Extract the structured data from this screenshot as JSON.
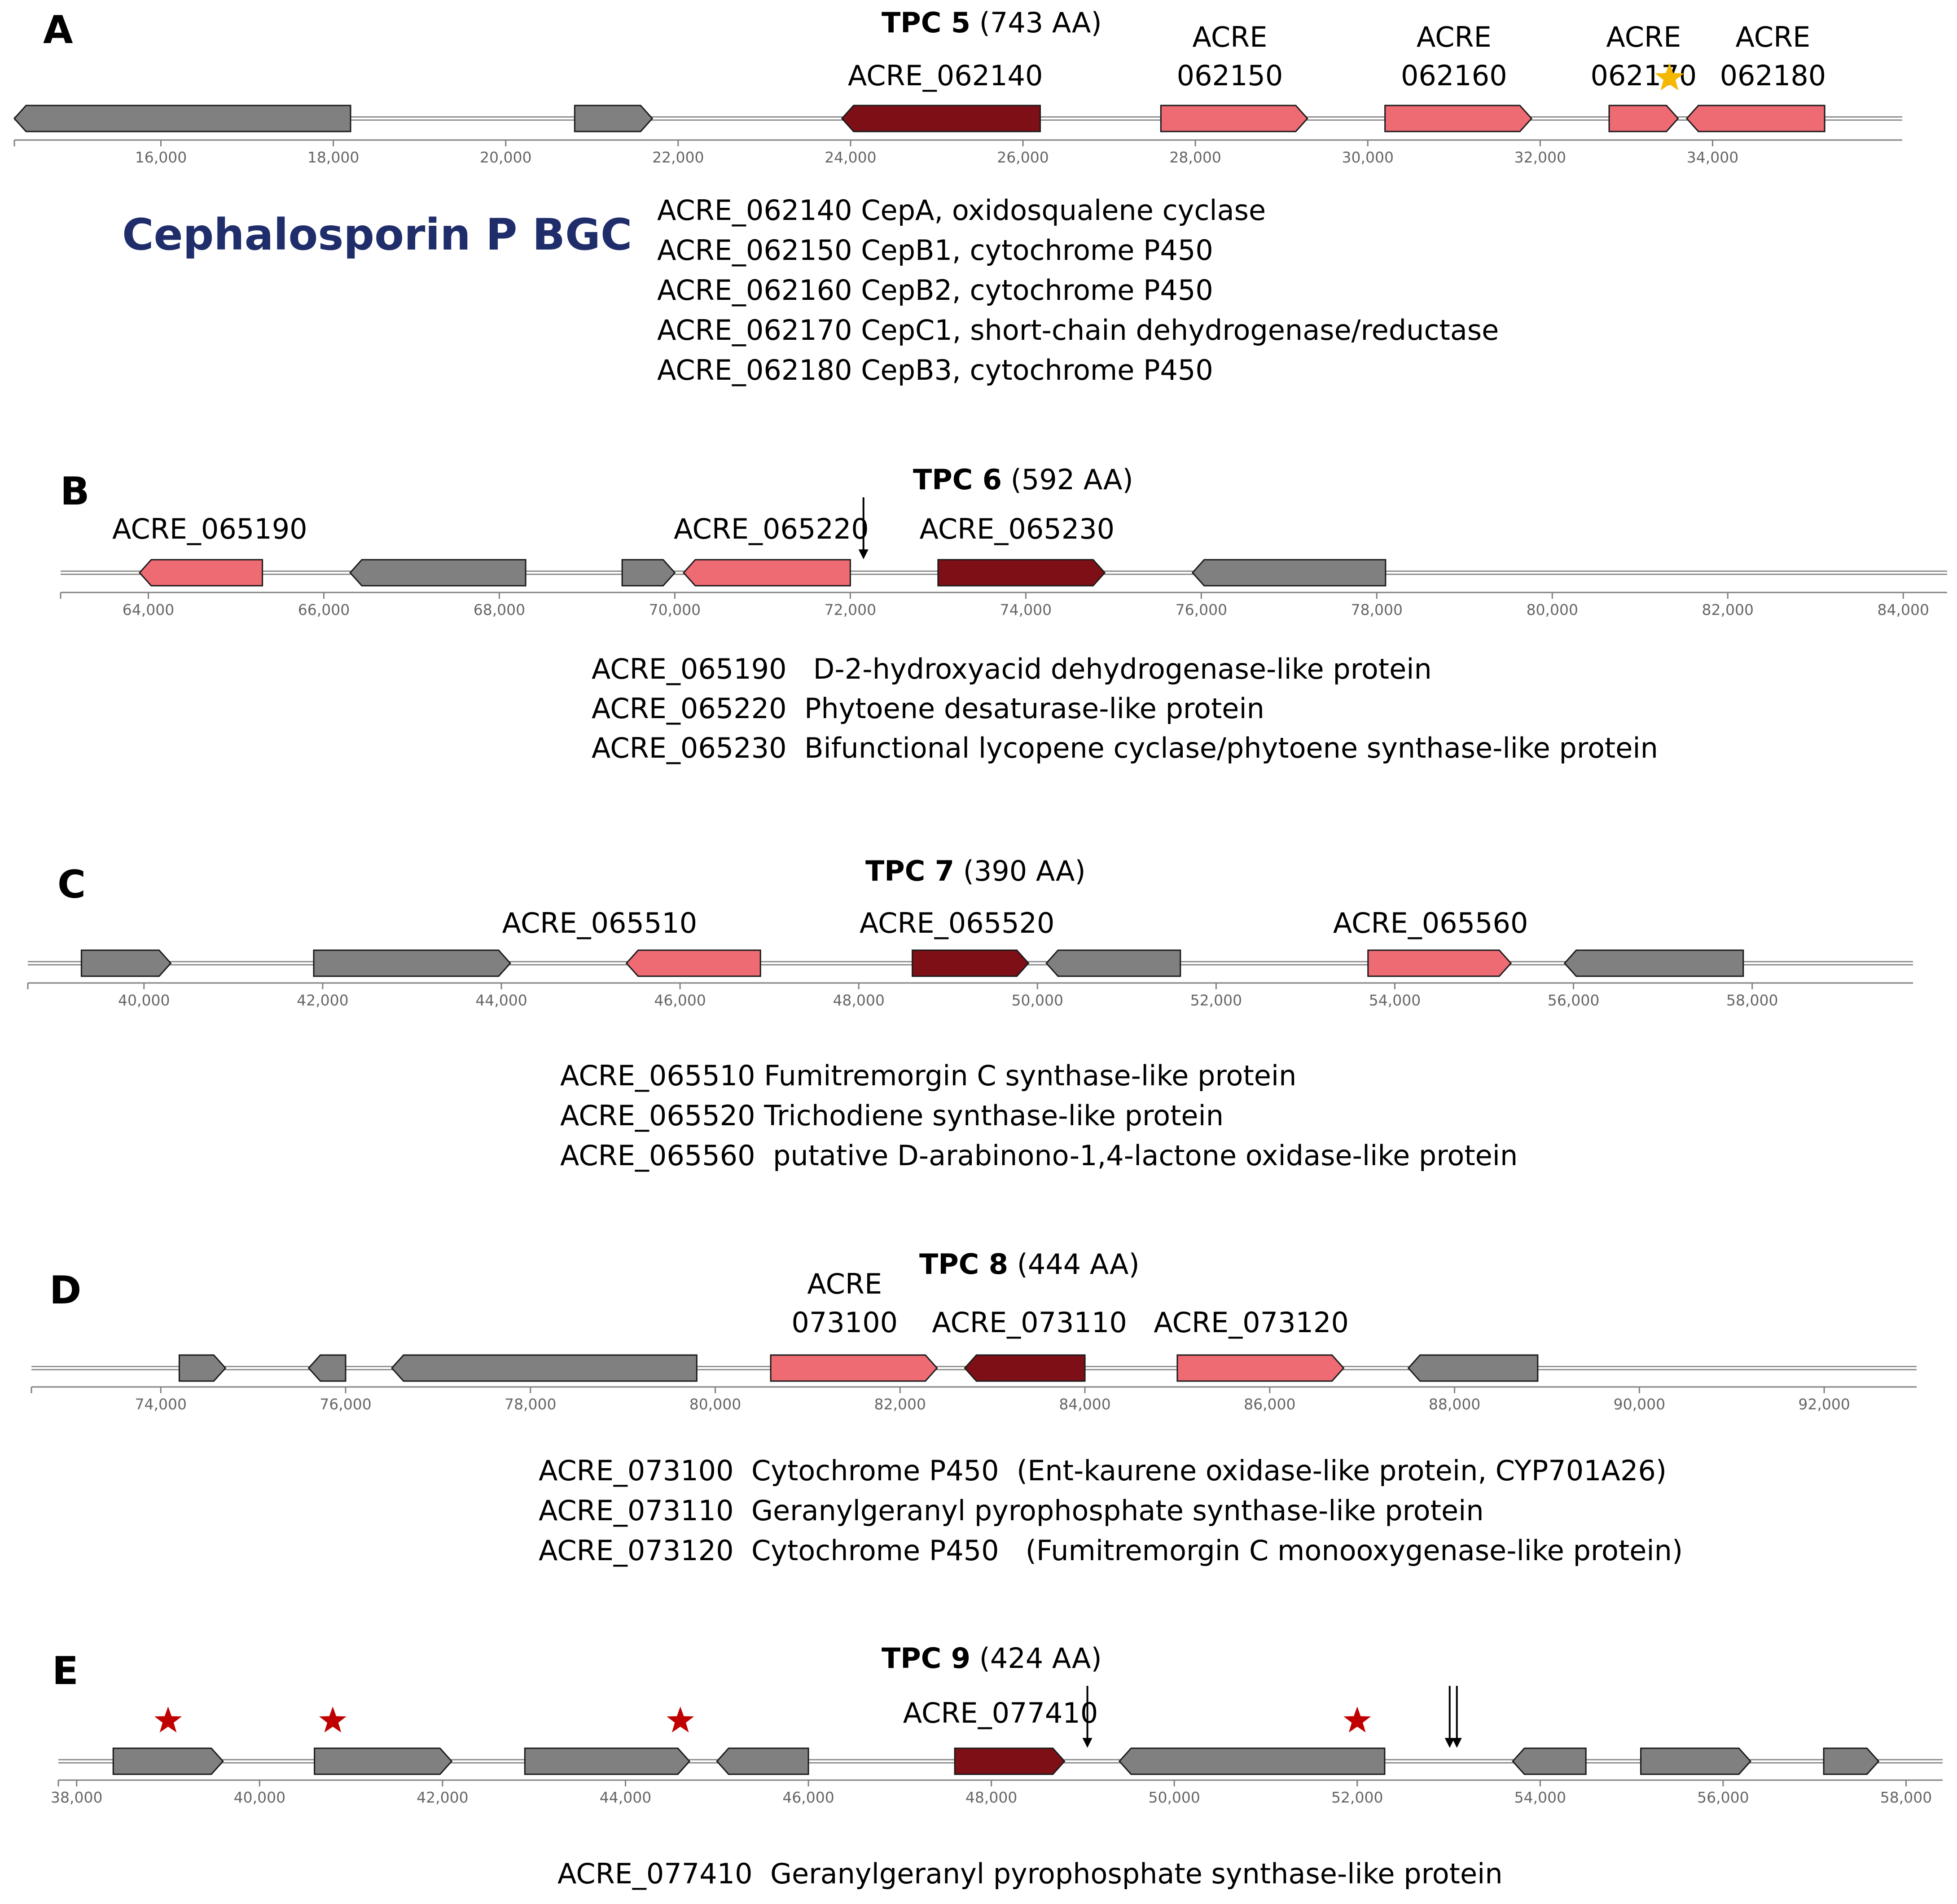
{
  "colors": {
    "core_gene": "#7f0f17",
    "cluster_gene": "#ee6b73",
    "other_gene": "#808080",
    "gene_stroke": "#1a1a1a",
    "backbone": "#909090",
    "axis": "#808080",
    "cluster_title": "#1f2d6b",
    "marker_star_gold": "#f5b800",
    "marker_star_red": "#c00000"
  },
  "cluster_title": "Cephalosporin P BGC",
  "panels": [
    {
      "letter": "A",
      "tpc_name": "TPC 5",
      "tpc_size": "(743 AA)",
      "axis": {
        "min": 14300,
        "max": 36200,
        "ticks": [
          16000,
          18000,
          20000,
          22000,
          24000,
          26000,
          28000,
          30000,
          32000,
          34000
        ]
      },
      "genes": [
        {
          "start": 14300,
          "end": 18200,
          "strand": "-",
          "type": "other"
        },
        {
          "start": 20800,
          "end": 21700,
          "strand": "+",
          "type": "other"
        },
        {
          "start": 23900,
          "end": 26200,
          "strand": "-",
          "type": "core"
        },
        {
          "start": 27600,
          "end": 29300,
          "strand": "+",
          "type": "cluster"
        },
        {
          "start": 30200,
          "end": 31900,
          "strand": "+",
          "type": "cluster"
        },
        {
          "start": 32800,
          "end": 33600,
          "strand": "+",
          "type": "cluster"
        },
        {
          "start": 33700,
          "end": 35300,
          "strand": "-",
          "type": "cluster"
        }
      ],
      "gene_labels": [
        {
          "lines": [
            "ACRE_062140"
          ],
          "pos": 25100
        },
        {
          "lines": [
            "ACRE",
            "062150"
          ],
          "pos": 28400
        },
        {
          "lines": [
            "ACRE",
            "062160"
          ],
          "pos": 31000
        },
        {
          "lines": [
            "ACRE",
            "062170"
          ],
          "pos": 33200
        },
        {
          "lines": [
            "ACRE",
            "062180"
          ],
          "pos": 34700
        }
      ],
      "markers": [
        {
          "kind": "star-gold",
          "pos": 33500
        }
      ],
      "descriptions": [
        "ACRE_062140 CepA, oxidosqualene cyclase",
        "ACRE_062150 CepB1, cytochrome P450",
        "ACRE_062160 CepB2, cytochrome P450",
        "ACRE_062170 CepC1, short-chain dehydrogenase/reductase",
        "ACRE_062180 CepB3, cytochrome P450"
      ]
    },
    {
      "letter": "B",
      "tpc_name": "TPC 6",
      "tpc_size": "(592 AA)",
      "axis": {
        "min": 63000,
        "max": 84500,
        "ticks": [
          64000,
          66000,
          68000,
          70000,
          72000,
          74000,
          76000,
          78000,
          80000,
          82000,
          84000
        ]
      },
      "genes": [
        {
          "start": 63900,
          "end": 65300,
          "strand": "-",
          "type": "cluster"
        },
        {
          "start": 66300,
          "end": 68300,
          "strand": "-",
          "type": "other"
        },
        {
          "start": 69400,
          "end": 70000,
          "strand": "+",
          "type": "other"
        },
        {
          "start": 70100,
          "end": 72000,
          "strand": "-",
          "type": "cluster"
        },
        {
          "start": 73000,
          "end": 74900,
          "strand": "+",
          "type": "core"
        },
        {
          "start": 75900,
          "end": 78100,
          "strand": "-",
          "type": "other"
        }
      ],
      "gene_labels": [
        {
          "lines": [
            "ACRE_065190"
          ],
          "pos": 64700
        },
        {
          "lines": [
            "ACRE_065220"
          ],
          "pos": 71100
        },
        {
          "lines": [
            "ACRE_065230"
          ],
          "pos": 73900
        }
      ],
      "markers": [
        {
          "kind": "arrow",
          "pos": 72150
        }
      ],
      "descriptions": [
        "ACRE_065190   D-2-hydroxyacid dehydrogenase-like protein",
        "ACRE_065220  Phytoene desaturase-like protein",
        "ACRE_065230  Bifunctional lycopene cyclase/phytoene synthase-like protein"
      ]
    },
    {
      "letter": "C",
      "tpc_name": "TPC 7",
      "tpc_size": "(390 AA)",
      "axis": {
        "min": 38700,
        "max": 59800,
        "ticks": [
          40000,
          42000,
          44000,
          46000,
          48000,
          50000,
          52000,
          54000,
          56000,
          58000
        ]
      },
      "genes": [
        {
          "start": 39300,
          "end": 40300,
          "strand": "+",
          "type": "other"
        },
        {
          "start": 41900,
          "end": 44100,
          "strand": "+",
          "type": "other"
        },
        {
          "start": 45400,
          "end": 46900,
          "strand": "-",
          "type": "cluster"
        },
        {
          "start": 48600,
          "end": 49900,
          "strand": "+",
          "type": "core"
        },
        {
          "start": 50100,
          "end": 51600,
          "strand": "-",
          "type": "other"
        },
        {
          "start": 53700,
          "end": 55300,
          "strand": "+",
          "type": "cluster"
        },
        {
          "start": 55900,
          "end": 57900,
          "strand": "-",
          "type": "other"
        }
      ],
      "gene_labels": [
        {
          "lines": [
            "ACRE_065510"
          ],
          "pos": 45100
        },
        {
          "lines": [
            "ACRE_065520"
          ],
          "pos": 49100
        },
        {
          "lines": [
            "ACRE_065560"
          ],
          "pos": 54400
        }
      ],
      "markers": [],
      "descriptions": [
        "ACRE_065510 Fumitremorgin C synthase-like protein",
        "ACRE_065520 Trichodiene synthase-like protein",
        "ACRE_065560  putative D-arabinono-1,4-lactone oxidase-like protein"
      ]
    },
    {
      "letter": "D",
      "tpc_name": "TPC 8",
      "tpc_size": "(444 AA)",
      "axis": {
        "min": 72600,
        "max": 93000,
        "ticks": [
          74000,
          76000,
          78000,
          80000,
          82000,
          84000,
          86000,
          88000,
          90000,
          92000
        ]
      },
      "genes": [
        {
          "start": 74200,
          "end": 74700,
          "strand": "+",
          "type": "other"
        },
        {
          "start": 75600,
          "end": 76000,
          "strand": "-",
          "type": "other"
        },
        {
          "start": 76500,
          "end": 79800,
          "strand": "-",
          "type": "other"
        },
        {
          "start": 80600,
          "end": 82400,
          "strand": "+",
          "type": "cluster"
        },
        {
          "start": 82700,
          "end": 84000,
          "strand": "-",
          "type": "core"
        },
        {
          "start": 85000,
          "end": 86800,
          "strand": "+",
          "type": "cluster"
        },
        {
          "start": 87500,
          "end": 88900,
          "strand": "-",
          "type": "other"
        }
      ],
      "gene_labels": [
        {
          "lines": [
            "ACRE",
            "073100"
          ],
          "pos": 81400
        },
        {
          "lines": [
            "ACRE_073110"
          ],
          "pos": 83400
        },
        {
          "lines": [
            "ACRE_073120"
          ],
          "pos": 85800
        }
      ],
      "markers": [],
      "descriptions": [
        "ACRE_073100  Cytochrome P450  (Ent-kaurene oxidase-like protein, CYP701A26)",
        "ACRE_073110  Geranylgeranyl pyrophosphate synthase-like protein",
        "ACRE_073120  Cytochrome P450   (Fumitremorgin C monooxygenase-like protein)"
      ]
    },
    {
      "letter": "E",
      "tpc_name": "TPC 9",
      "tpc_size": "(424 AA)",
      "axis": {
        "min": 37800,
        "max": 58400,
        "ticks": [
          38000,
          40000,
          42000,
          44000,
          46000,
          48000,
          50000,
          52000,
          54000,
          56000,
          58000
        ]
      },
      "genes": [
        {
          "start": 38400,
          "end": 39600,
          "strand": "+",
          "type": "other"
        },
        {
          "start": 40600,
          "end": 42100,
          "strand": "+",
          "type": "other"
        },
        {
          "start": 42900,
          "end": 44700,
          "strand": "+",
          "type": "other"
        },
        {
          "start": 45000,
          "end": 46000,
          "strand": "-",
          "type": "other"
        },
        {
          "start": 47600,
          "end": 48800,
          "strand": "+",
          "type": "core"
        },
        {
          "start": 49400,
          "end": 52300,
          "strand": "-",
          "type": "other"
        },
        {
          "start": 53700,
          "end": 54500,
          "strand": "-",
          "type": "other"
        },
        {
          "start": 55100,
          "end": 56300,
          "strand": "+",
          "type": "other"
        },
        {
          "start": 57100,
          "end": 57700,
          "strand": "+",
          "type": "other"
        }
      ],
      "gene_labels": [
        {
          "lines": [
            "ACRE_077410"
          ],
          "pos": 48100
        }
      ],
      "markers": [
        {
          "kind": "star-red",
          "pos": 39000
        },
        {
          "kind": "star-red",
          "pos": 40800
        },
        {
          "kind": "star-red",
          "pos": 44600
        },
        {
          "kind": "star-red",
          "pos": 52000
        },
        {
          "kind": "arrow",
          "pos": 49050
        },
        {
          "kind": "double-arrow",
          "pos": 53050
        }
      ],
      "descriptions": [
        "ACRE_077410  Geranylgeranyl pyrophosphate synthase-like protein"
      ]
    }
  ]
}
